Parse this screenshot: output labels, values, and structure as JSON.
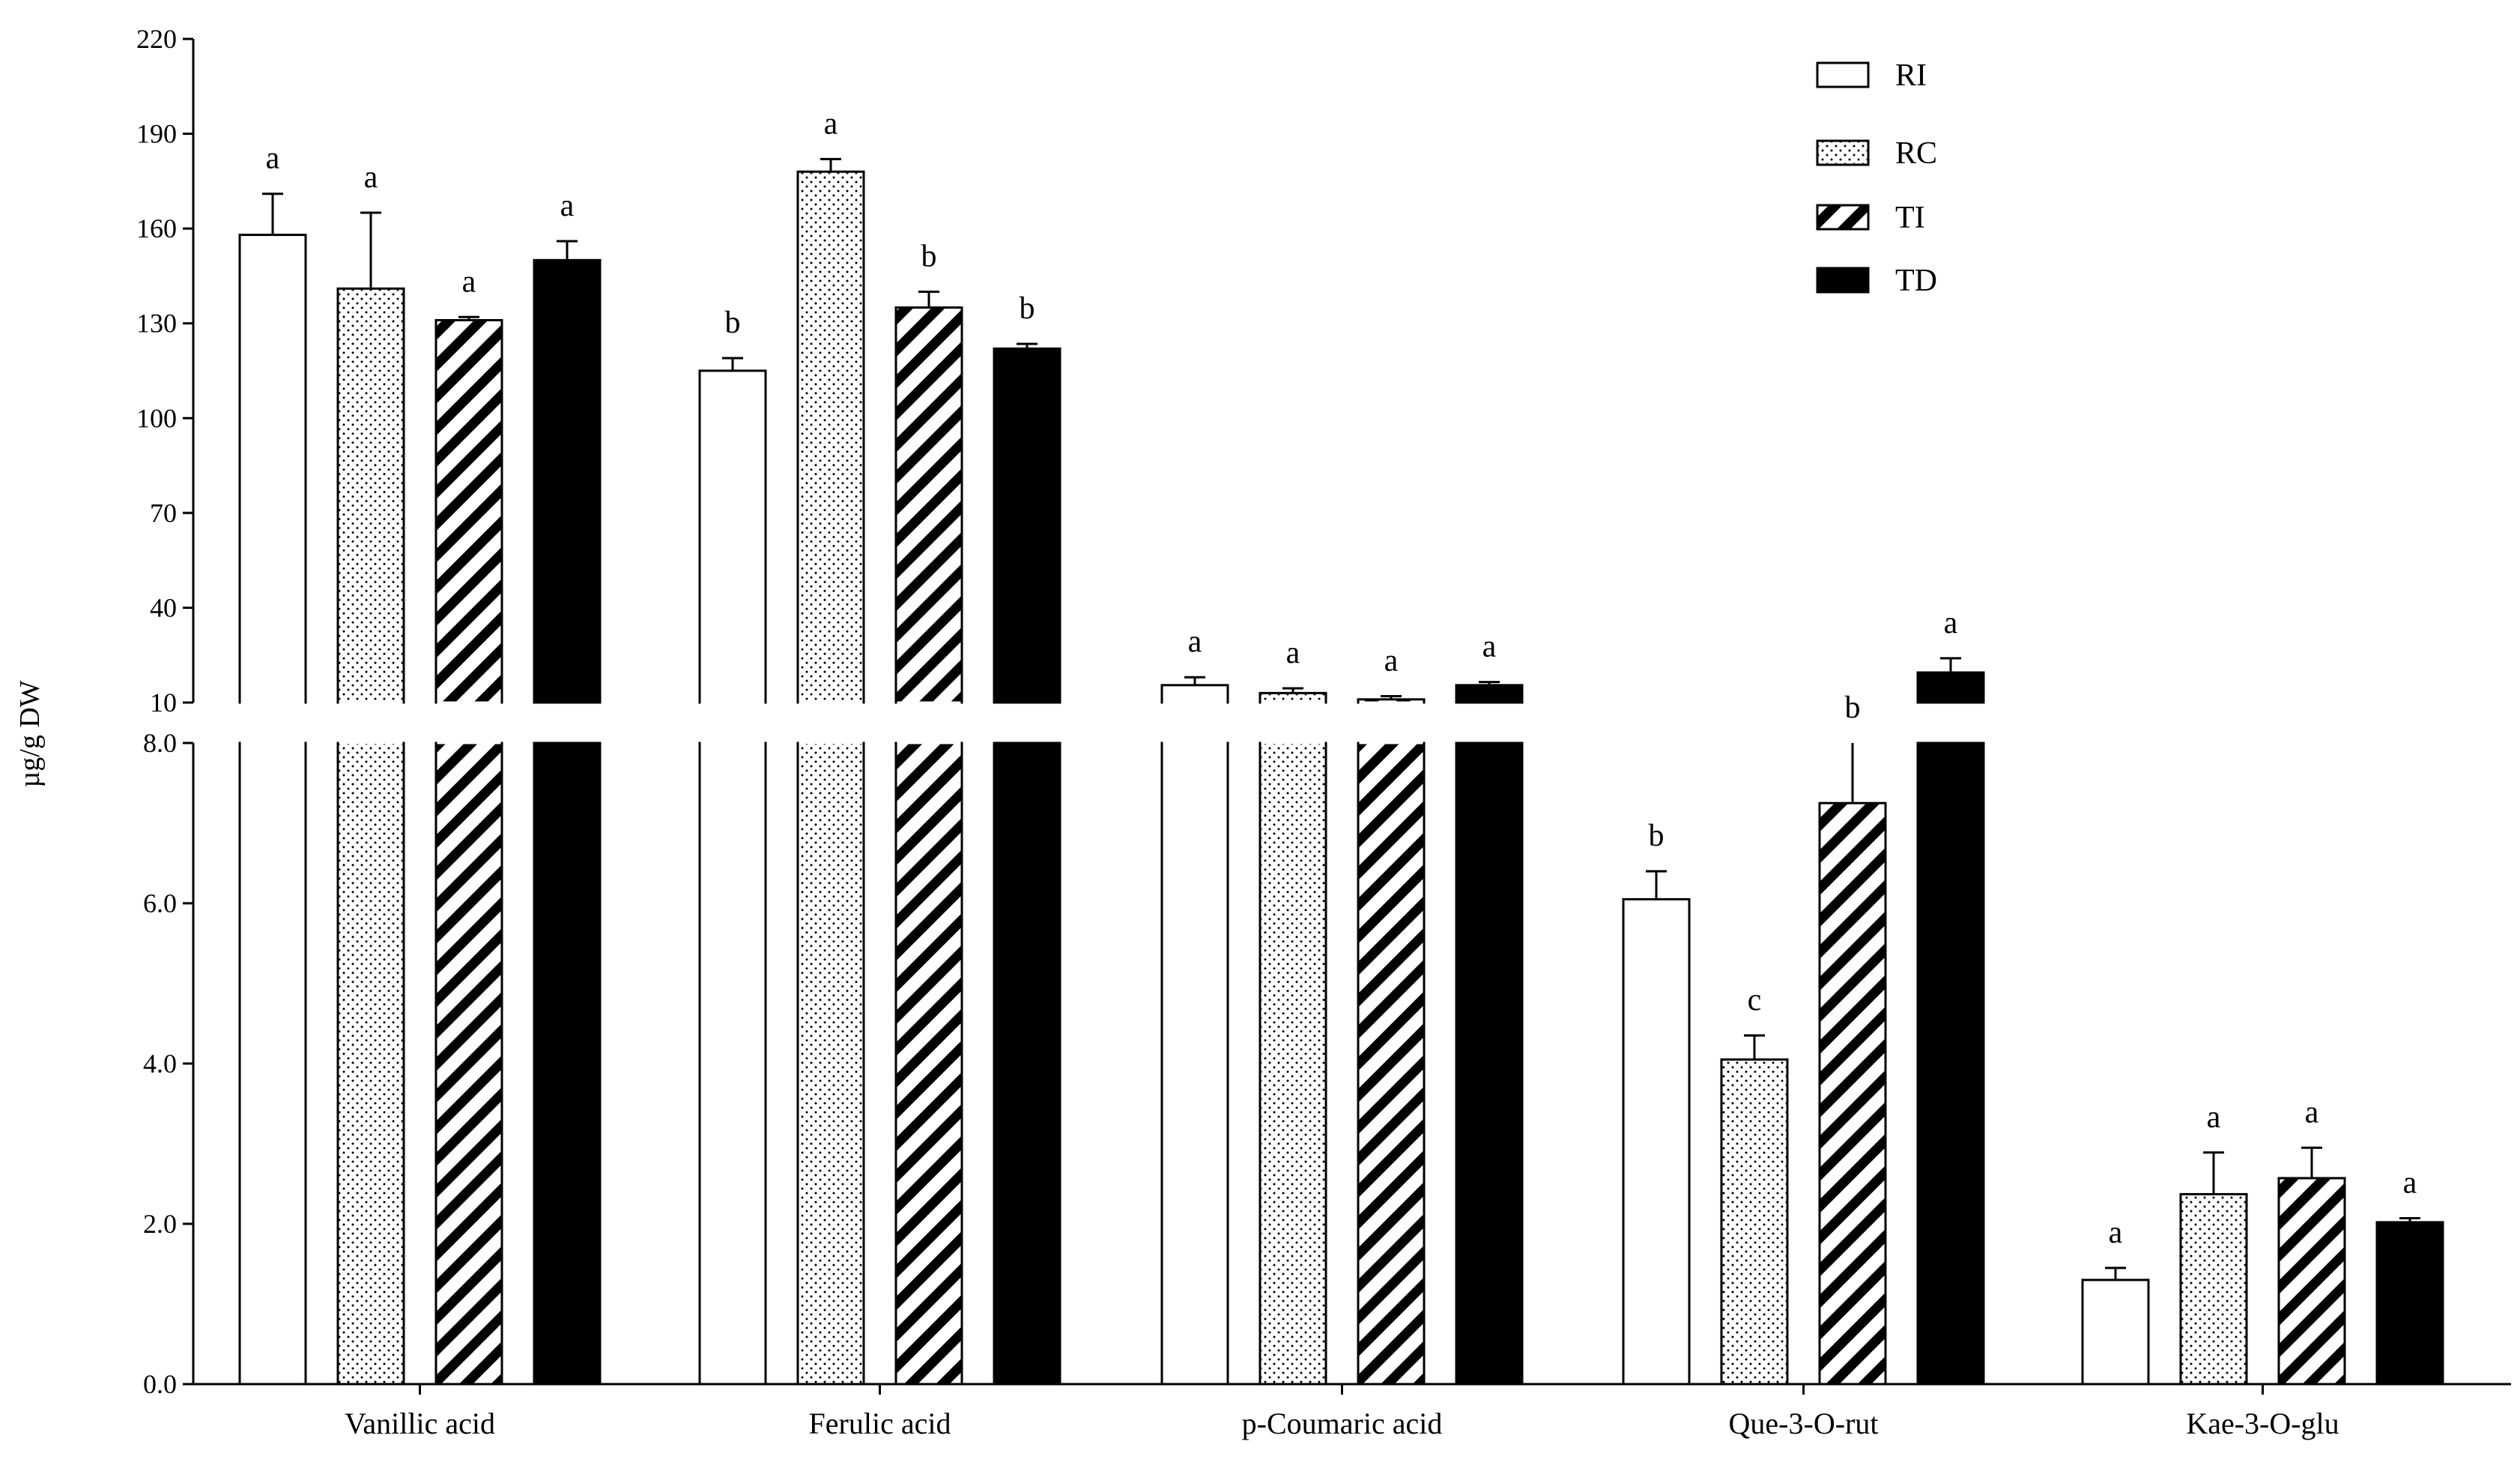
{
  "chart_data": {
    "type": "bar",
    "ylabel": "µg/g DW",
    "broken_axis": true,
    "upper_segment": {
      "ylim": [
        10,
        220
      ],
      "ticks": [
        "10",
        "40",
        "70",
        "100",
        "130",
        "160",
        "190",
        "220"
      ]
    },
    "lower_segment": {
      "ylim": [
        0,
        8
      ],
      "ticks": [
        "0.0",
        "2.0",
        "4.0",
        "6.0",
        "8.0"
      ]
    },
    "categories": [
      "Vanillic acid",
      "Ferulic acid",
      "p-Coumaric acid",
      "Que-3-O-rut",
      "Kae-3-O-glu"
    ],
    "series": [
      {
        "name": "RI",
        "pattern": "open",
        "values": [
          158,
          115,
          15.5,
          6.05,
          1.3
        ],
        "errors": [
          13,
          4,
          2.5,
          0.35,
          0.15
        ]
      },
      {
        "name": "RC",
        "pattern": "dotted",
        "values": [
          141,
          178,
          13.0,
          4.05,
          2.37
        ],
        "errors": [
          24,
          4,
          1.5,
          0.3,
          0.52
        ]
      },
      {
        "name": "TI",
        "pattern": "hatched",
        "values": [
          131,
          135,
          11.0,
          7.25,
          2.57
        ],
        "errors": [
          1,
          5,
          1.0,
          2.5,
          0.38
        ]
      },
      {
        "name": "TD",
        "pattern": "solid",
        "values": [
          150,
          122,
          15.5,
          19.5,
          2.02
        ],
        "errors": [
          6,
          1.5,
          1.0,
          4.5,
          0.05
        ]
      }
    ],
    "significance": [
      [
        "a",
        "b",
        "a",
        "b",
        "a"
      ],
      [
        "a",
        "a",
        "a",
        "c",
        "a"
      ],
      [
        "a",
        "b",
        "a",
        "b",
        "a"
      ],
      [
        "a",
        "b",
        "a",
        "a",
        "a"
      ]
    ],
    "legend": [
      "RI",
      "RC",
      "TI",
      "TD"
    ],
    "legend_position": "top-right"
  }
}
